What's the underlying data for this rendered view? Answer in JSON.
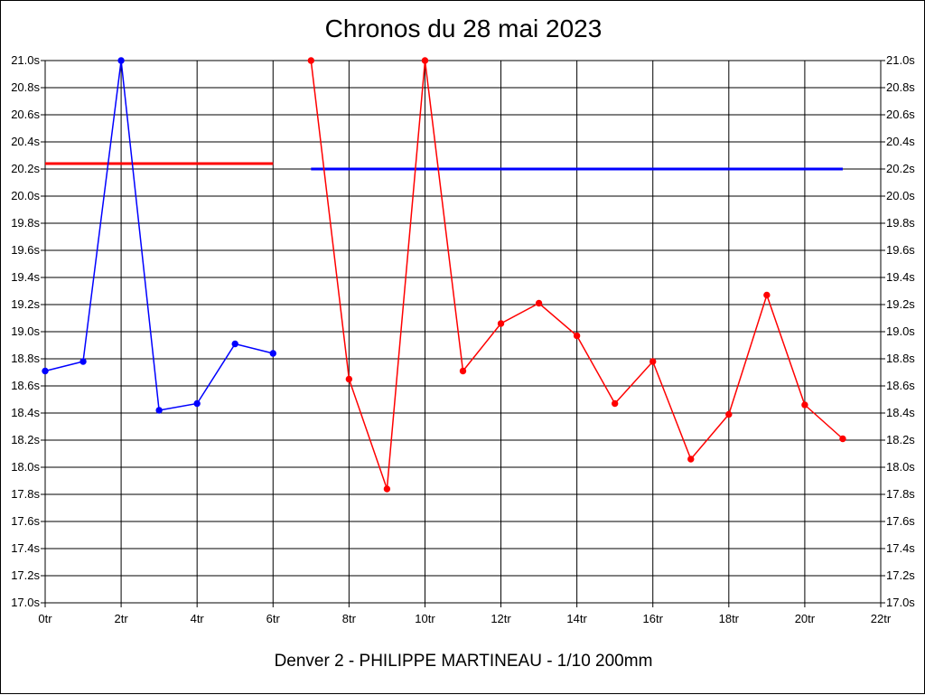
{
  "chart_data": {
    "type": "line",
    "title": "Chronos du 28 mai 2023",
    "subtitle": "Denver 2 - PHILIPPE MARTINEAU - 1/10 200mm",
    "xlabel": "",
    "ylabel": "",
    "xlim": [
      0,
      22
    ],
    "ylim": [
      17.0,
      21.0
    ],
    "x_ticks": [
      0,
      2,
      4,
      6,
      8,
      10,
      12,
      14,
      16,
      18,
      20,
      22
    ],
    "x_tick_labels": [
      "0tr",
      "2tr",
      "4tr",
      "6tr",
      "8tr",
      "10tr",
      "12tr",
      "14tr",
      "16tr",
      "18tr",
      "20tr",
      "22tr"
    ],
    "y_ticks": [
      17.0,
      17.2,
      17.4,
      17.6,
      17.8,
      18.0,
      18.2,
      18.4,
      18.6,
      18.8,
      19.0,
      19.2,
      19.4,
      19.6,
      19.8,
      20.0,
      20.2,
      20.4,
      20.6,
      20.8,
      21.0
    ],
    "y_tick_labels": [
      "17.0s",
      "17.2s",
      "17.4s",
      "17.6s",
      "17.8s",
      "18.0s",
      "18.2s",
      "18.4s",
      "18.6s",
      "18.8s",
      "19.0s",
      "19.2s",
      "19.4s",
      "19.6s",
      "19.8s",
      "20.0s",
      "20.2s",
      "20.4s",
      "20.6s",
      "20.8s",
      "21.0s"
    ],
    "grid": true,
    "series": [
      {
        "color": "#0000ff",
        "x": [
          0,
          1,
          2,
          3,
          4,
          5,
          6
        ],
        "y": [
          18.71,
          18.78,
          21.0,
          18.42,
          18.47,
          18.91,
          18.84
        ]
      },
      {
        "color": "#ff0000",
        "x": [
          7,
          8,
          9,
          10,
          11,
          12,
          13,
          14,
          15,
          16,
          17,
          18,
          19,
          20,
          21
        ],
        "y": [
          21.0,
          18.65,
          17.84,
          21.0,
          18.71,
          19.06,
          19.21,
          18.97,
          18.47,
          18.78,
          18.06,
          18.39,
          19.27,
          18.46,
          18.21
        ]
      }
    ],
    "reference_lines": [
      {
        "color": "#ff0000",
        "x_start": 0,
        "x_end": 6,
        "y": 20.24
      },
      {
        "color": "#0000ff",
        "x_start": 7,
        "x_end": 21,
        "y": 20.2
      }
    ]
  }
}
